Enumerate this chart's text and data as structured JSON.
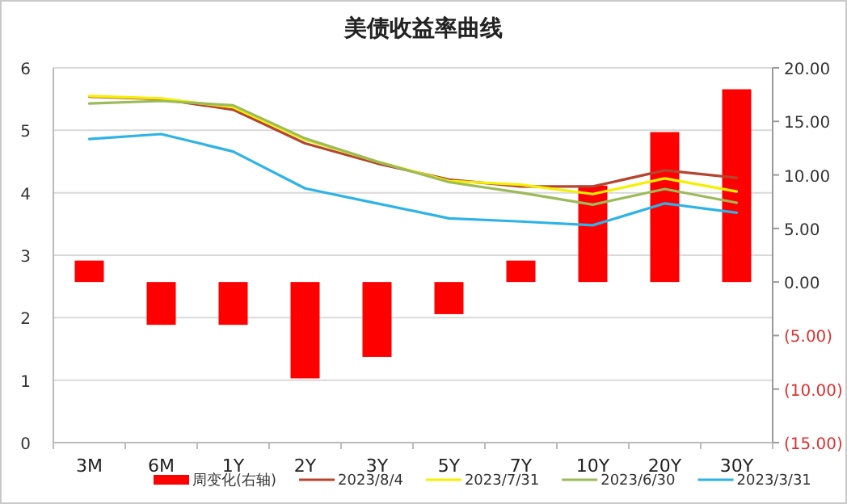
{
  "chart_data": {
    "type": "line",
    "title": "美债收益率曲线",
    "categories": [
      "3M",
      "6M",
      "1Y",
      "2Y",
      "3Y",
      "5Y",
      "7Y",
      "10Y",
      "20Y",
      "30Y"
    ],
    "series": [
      {
        "name": "周变化(右轴)",
        "type": "bar",
        "axis": "y2",
        "color": "#ff0000",
        "values": [
          2,
          -4,
          -4,
          -9,
          -7,
          -3,
          2,
          9,
          14,
          18
        ]
      },
      {
        "name": "2023/8/4",
        "color": "#b5452f",
        "values": [
          5.54,
          5.5,
          5.33,
          4.79,
          4.47,
          4.21,
          4.1,
          4.1,
          4.36,
          4.24
        ]
      },
      {
        "name": "2023/7/31",
        "color": "#f5f000",
        "values": [
          5.55,
          5.51,
          5.37,
          4.85,
          4.5,
          4.19,
          4.13,
          3.98,
          4.23,
          4.02
        ]
      },
      {
        "name": "2023/6/30",
        "color": "#9bbb59",
        "values": [
          5.43,
          5.47,
          5.4,
          4.87,
          4.5,
          4.17,
          4.0,
          3.81,
          4.06,
          3.84
        ]
      },
      {
        "name": "2023/3/31",
        "color": "#2db3e6",
        "values": [
          4.86,
          4.94,
          4.66,
          4.07,
          3.83,
          3.59,
          3.54,
          3.48,
          3.83,
          3.68
        ]
      }
    ],
    "ylim": [
      0,
      6
    ],
    "yticks": [
      0,
      1,
      2,
      3,
      4,
      5,
      6
    ],
    "y2lim": [
      -15,
      20
    ],
    "y2ticks": [
      {
        "value": 20,
        "label": "20.00"
      },
      {
        "value": 15,
        "label": "15.00"
      },
      {
        "value": 10,
        "label": "10.00"
      },
      {
        "value": 5,
        "label": "5.00"
      },
      {
        "value": 0,
        "label": "0.00"
      },
      {
        "value": -5,
        "label": "(5.00)"
      },
      {
        "value": -10,
        "label": "(10.00)"
      },
      {
        "value": -15,
        "label": "(15.00)"
      }
    ],
    "grid": "y",
    "legend": "bottom",
    "line_style": "solid",
    "marker": "none"
  }
}
